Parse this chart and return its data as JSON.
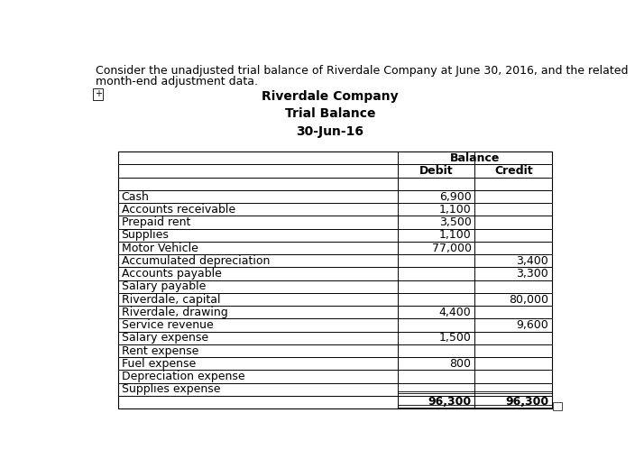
{
  "intro_line1": "Consider the unadjusted trial balance of Riverdale Company at June 30, 2016, and the related",
  "intro_line2": "month-end adjustment data.",
  "company_name": "Riverdale Company",
  "report_title": "Trial Balance",
  "report_date": "30-Jun-16",
  "col_header_1": "Balance",
  "col_header_2": "Debit",
  "col_header_3": "Credit",
  "rows": [
    {
      "account": "Cash",
      "debit": "6,900",
      "credit": ""
    },
    {
      "account": "Accounts receivable",
      "debit": "1,100",
      "credit": ""
    },
    {
      "account": "Prepaid rent",
      "debit": "3,500",
      "credit": ""
    },
    {
      "account": "Supplies",
      "debit": "1,100",
      "credit": ""
    },
    {
      "account": "Motor Vehicle",
      "debit": "77,000",
      "credit": ""
    },
    {
      "account": "Accumulated depreciation",
      "debit": "",
      "credit": "3,400"
    },
    {
      "account": "Accounts payable",
      "debit": "",
      "credit": "3,300"
    },
    {
      "account": "Salary payable",
      "debit": "",
      "credit": ""
    },
    {
      "account": "Riverdale, capital",
      "debit": "",
      "credit": "80,000"
    },
    {
      "account": "Riverdale, drawing",
      "debit": "4,400",
      "credit": ""
    },
    {
      "account": "Service revenue",
      "debit": "",
      "credit": "9,600"
    },
    {
      "account": "Salary expense",
      "debit": "1,500",
      "credit": ""
    },
    {
      "account": "Rent expense",
      "debit": "",
      "credit": ""
    },
    {
      "account": "Fuel expense",
      "debit": "800",
      "credit": ""
    },
    {
      "account": "Depreciation expense",
      "debit": "",
      "credit": ""
    },
    {
      "account": "Supplies expense",
      "debit": "",
      "credit": ""
    }
  ],
  "total_debit": "96,300",
  "total_credit": "96,300",
  "bg_color": "#ffffff",
  "text_color": "#000000",
  "font_size": 9,
  "header_font_size": 10
}
